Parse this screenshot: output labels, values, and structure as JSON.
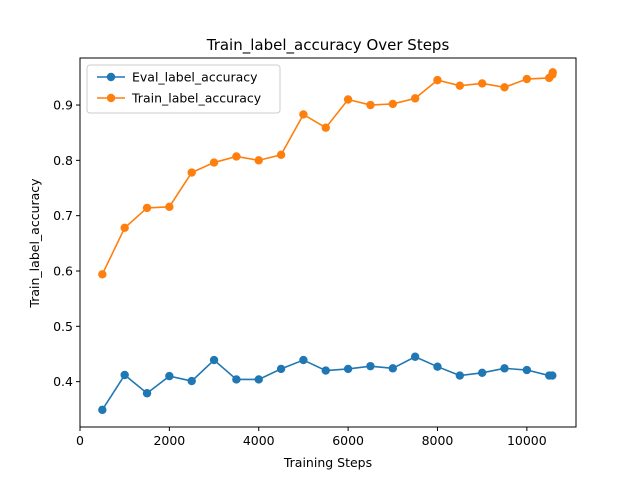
{
  "chart_data": {
    "type": "line",
    "title": "Train_label_accuracy Over Steps",
    "xlabel": "Training Steps",
    "ylabel": "Train_label_accuracy",
    "xlim": [
      0,
      11100
    ],
    "ylim": [
      0.318,
      0.985
    ],
    "x_ticks": [
      0,
      2000,
      4000,
      6000,
      8000,
      10000
    ],
    "y_ticks": [
      0.4,
      0.5,
      0.6,
      0.7,
      0.8,
      0.9
    ],
    "grid": false,
    "legend_position": "top-left",
    "series": [
      {
        "name": "Eval_label_accuracy",
        "color": "#1f77b4",
        "marker": "circle",
        "x": [
          500,
          1000,
          1500,
          2000,
          2500,
          3000,
          3500,
          4000,
          4500,
          5000,
          5500,
          6000,
          6500,
          7000,
          7500,
          8000,
          8500,
          9000,
          9500,
          10000,
          10500,
          10570
        ],
        "y": [
          0.349,
          0.412,
          0.379,
          0.41,
          0.401,
          0.439,
          0.404,
          0.404,
          0.423,
          0.439,
          0.42,
          0.423,
          0.428,
          0.424,
          0.445,
          0.427,
          0.411,
          0.416,
          0.424,
          0.421,
          0.411,
          0.411
        ]
      },
      {
        "name": "Train_label_accuracy",
        "color": "#ff7f0e",
        "marker": "circle",
        "x": [
          500,
          1000,
          1500,
          2000,
          2500,
          3000,
          3500,
          4000,
          4500,
          5000,
          5500,
          6000,
          6500,
          7000,
          7500,
          8000,
          8500,
          9000,
          9500,
          10000,
          10500,
          10570,
          10580
        ],
        "y": [
          0.594,
          0.678,
          0.714,
          0.716,
          0.778,
          0.796,
          0.807,
          0.8,
          0.81,
          0.883,
          0.859,
          0.91,
          0.9,
          0.902,
          0.912,
          0.945,
          0.935,
          0.939,
          0.932,
          0.947,
          0.949,
          0.955,
          0.959
        ]
      }
    ]
  }
}
